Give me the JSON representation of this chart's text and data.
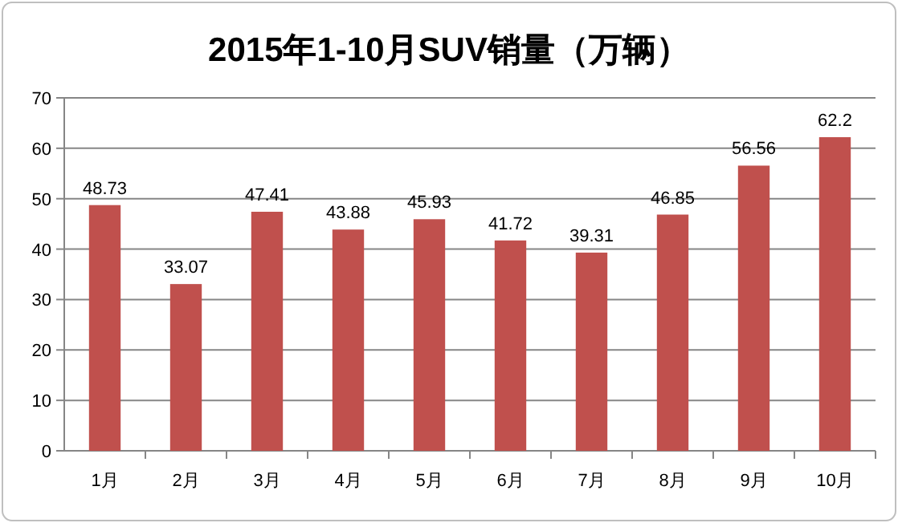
{
  "chart_data": {
    "type": "bar",
    "title": "2015年1-10月SUV销量（万辆）",
    "categories": [
      "1月",
      "2月",
      "3月",
      "4月",
      "5月",
      "6月",
      "7月",
      "8月",
      "9月",
      "10月"
    ],
    "values": [
      48.73,
      33.07,
      47.41,
      43.88,
      45.93,
      41.72,
      39.31,
      46.85,
      56.56,
      62.2
    ],
    "color": "#c0504d",
    "ylim": [
      0,
      70
    ],
    "yticks": [
      0,
      10,
      20,
      30,
      40,
      50,
      60,
      70
    ],
    "grid": "y",
    "data_labels": true
  }
}
